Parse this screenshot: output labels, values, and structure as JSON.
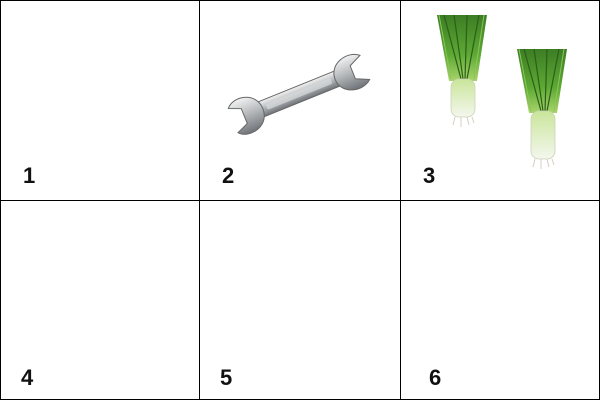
{
  "cells": [
    {
      "number": "1",
      "content": "empty"
    },
    {
      "number": "2",
      "content": "wrench-icon"
    },
    {
      "number": "3",
      "content": "leek-icon"
    },
    {
      "number": "4",
      "content": "empty"
    },
    {
      "number": "5",
      "content": "empty"
    },
    {
      "number": "6",
      "content": "empty"
    }
  ]
}
